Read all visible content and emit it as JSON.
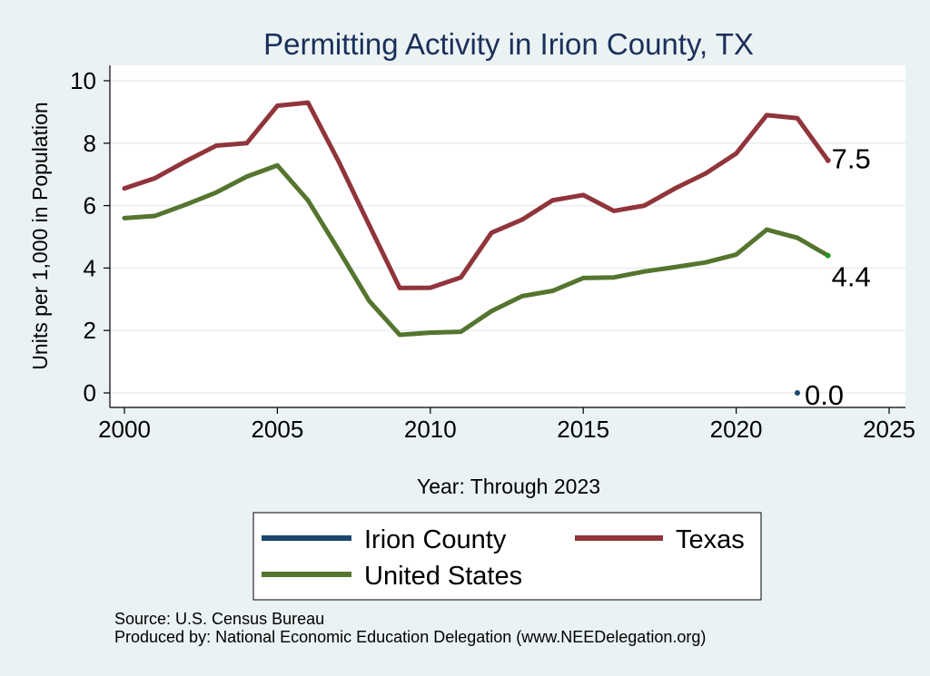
{
  "chart_data": {
    "type": "line",
    "title": "Permitting Activity in Irion County, TX",
    "xlabel": "Year: Through 2023",
    "ylabel": "Units per 1,000 in Population",
    "xlim": [
      2000,
      2025
    ],
    "ylim": [
      0,
      10
    ],
    "x_ticks": [
      "2000",
      "2005",
      "2010",
      "2015",
      "2020",
      "2025"
    ],
    "y_ticks": [
      "0",
      "2",
      "4",
      "6",
      "8",
      "10"
    ],
    "grid": "horizontal",
    "legend_position": "bottom",
    "series": [
      {
        "name": "Irion County",
        "color": "#1a476f",
        "x": [
          2022
        ],
        "values": [
          0.0
        ],
        "end_label": "0.0"
      },
      {
        "name": "Texas",
        "color": "#90353b",
        "x": [
          2000,
          2001,
          2002,
          2003,
          2004,
          2005,
          2006,
          2007,
          2008,
          2009,
          2010,
          2011,
          2012,
          2013,
          2014,
          2015,
          2016,
          2017,
          2018,
          2019,
          2020,
          2021,
          2022,
          2023
        ],
        "values": [
          6.55,
          6.88,
          7.42,
          7.92,
          8.0,
          9.2,
          9.3,
          7.42,
          5.38,
          3.36,
          3.37,
          3.7,
          5.13,
          5.55,
          6.17,
          6.34,
          5.83,
          6.0,
          6.55,
          7.03,
          7.67,
          8.9,
          8.8,
          7.45
        ],
        "end_label": "7.5"
      },
      {
        "name": "United States",
        "color": "#55752f",
        "x": [
          2000,
          2001,
          2002,
          2003,
          2004,
          2005,
          2006,
          2007,
          2008,
          2009,
          2010,
          2011,
          2012,
          2013,
          2014,
          2015,
          2016,
          2017,
          2018,
          2019,
          2020,
          2021,
          2022,
          2023
        ],
        "values": [
          5.6,
          5.67,
          6.03,
          6.42,
          6.93,
          7.29,
          6.17,
          4.58,
          2.95,
          1.86,
          1.93,
          1.96,
          2.62,
          3.1,
          3.27,
          3.68,
          3.7,
          3.89,
          4.03,
          4.18,
          4.43,
          5.23,
          4.97,
          4.4
        ],
        "end_label": "4.4"
      }
    ]
  },
  "notes": {
    "source": "Source: U.S. Census Bureau",
    "produced_by": "Produced by: National Economic Education Delegation (www.NEEDelegation.org)"
  }
}
